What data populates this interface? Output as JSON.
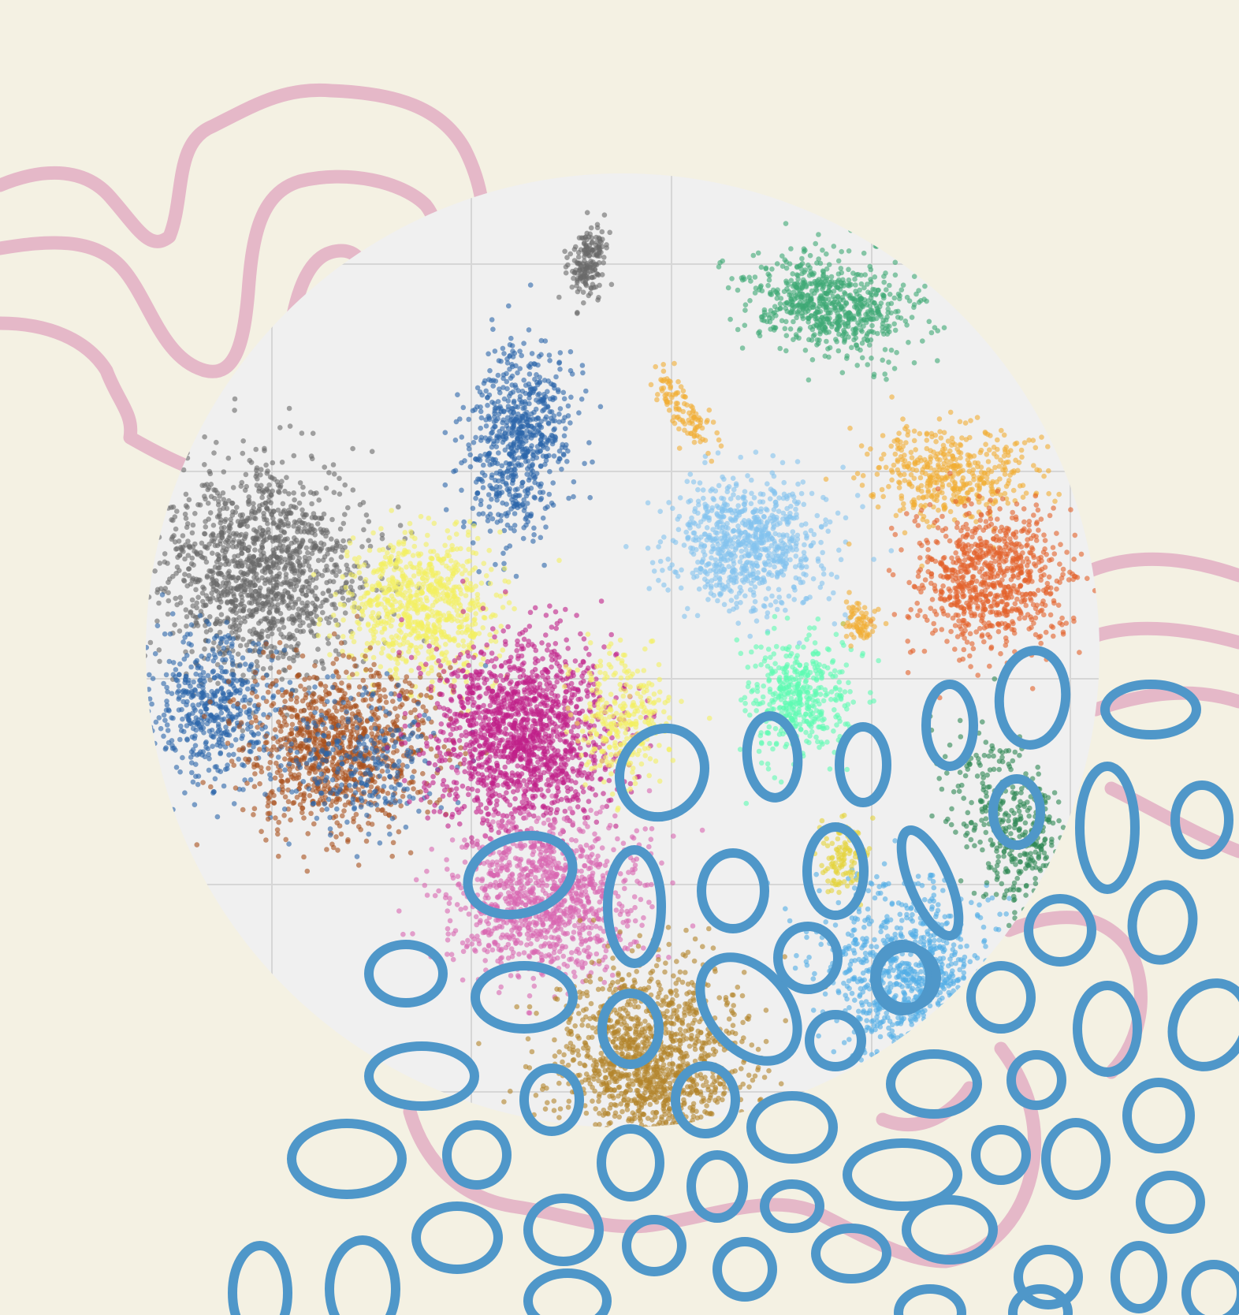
{
  "illustration": {
    "background_color": "#f4f1e3",
    "disc_color": "#f0f0f0",
    "grid_color": "#d6d6d6",
    "squiggle_color": "#e5b8c8",
    "ring_color": "#4f97c9",
    "cluster_colors": [
      "#696969",
      "#2c66aa",
      "#f4f060",
      "#c01f88",
      "#a9501d",
      "#d966b0",
      "#b38429",
      "#84c3ee",
      "#5dfbb2",
      "#f2ae33",
      "#e2612a",
      "#3ea874",
      "#2d8754",
      "#52aee6",
      "#e5d33a"
    ]
  }
}
